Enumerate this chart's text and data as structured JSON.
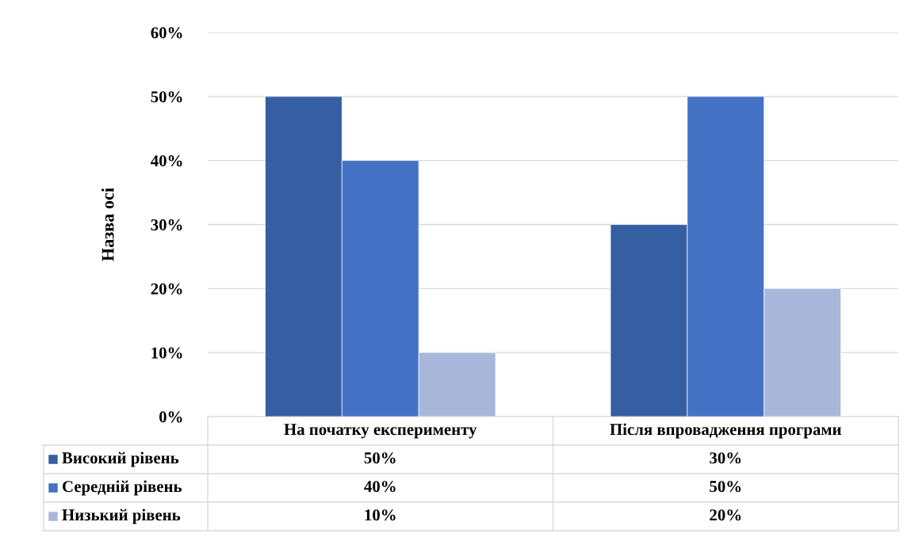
{
  "chart_data": {
    "type": "bar",
    "ylabel": "Назва осі",
    "categories": [
      "На початку експерименту",
      "Після впровадження програми"
    ],
    "series": [
      {
        "name": "Високий рівень",
        "color": "#365fa3",
        "values": [
          50,
          30
        ],
        "value_labels": [
          "50%",
          "30%"
        ]
      },
      {
        "name": "Середній рівень",
        "color": "#4472c4",
        "values": [
          40,
          50
        ],
        "value_labels": [
          "40%",
          "50%"
        ]
      },
      {
        "name": "Низький рівень",
        "color": "#a9b7db",
        "values": [
          10,
          20
        ],
        "value_labels": [
          "10%",
          "20%"
        ]
      }
    ],
    "ylim": [
      0,
      60
    ],
    "yticks": [
      {
        "value": 0,
        "label": "0%"
      },
      {
        "value": 10,
        "label": "10%"
      },
      {
        "value": 20,
        "label": "20%"
      },
      {
        "value": 30,
        "label": "30%"
      },
      {
        "value": 40,
        "label": "40%"
      },
      {
        "value": 50,
        "label": "50%"
      },
      {
        "value": 60,
        "label": "60%"
      }
    ],
    "grid": "y",
    "legend": "bottom"
  }
}
